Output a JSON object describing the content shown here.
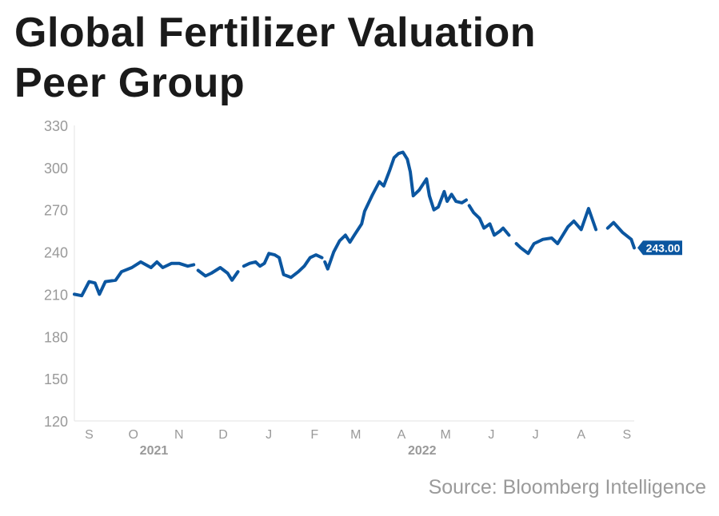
{
  "chart_data": {
    "type": "line",
    "title": "Global Fertilizer Valuation Peer Group",
    "source": "Source: Bloomberg Intelligence",
    "ylim": [
      120,
      330
    ],
    "yticks": [
      120,
      150,
      180,
      210,
      240,
      270,
      300,
      330
    ],
    "xlim": [
      "2021-08-22",
      "2022-09-06"
    ],
    "month_ticks": [
      {
        "date": "2021-09-01",
        "label": "S"
      },
      {
        "date": "2021-10-01",
        "label": "O"
      },
      {
        "date": "2021-11-01",
        "label": "N"
      },
      {
        "date": "2021-12-01",
        "label": "D"
      },
      {
        "date": "2022-01-01",
        "label": "J"
      },
      {
        "date": "2022-02-01",
        "label": "F"
      },
      {
        "date": "2022-03-01",
        "label": "M"
      },
      {
        "date": "2022-04-01",
        "label": "A"
      },
      {
        "date": "2022-05-01",
        "label": "M"
      },
      {
        "date": "2022-06-01",
        "label": "J"
      },
      {
        "date": "2022-07-01",
        "label": "J"
      },
      {
        "date": "2022-08-01",
        "label": "A"
      },
      {
        "date": "2022-09-01",
        "label": "S"
      }
    ],
    "year_labels": [
      {
        "date": "2021-10-15",
        "label": "2021"
      },
      {
        "date": "2022-04-15",
        "label": "2022"
      }
    ],
    "grid": false,
    "line_color": "#0b56a0",
    "last_value_label": "243.00",
    "x": [
      "2021-08-22",
      "2021-08-27",
      "2021-09-01",
      "2021-09-05",
      "2021-09-08",
      "2021-09-12",
      "2021-09-19",
      "2021-09-23",
      "2021-09-30",
      "2021-10-06",
      "2021-10-13",
      "2021-10-17",
      "2021-10-21",
      "2021-10-27",
      "2021-11-01",
      "2021-11-07",
      "2021-11-11",
      "2021-11-12",
      "2021-11-14",
      "2021-11-19",
      "2021-11-23",
      "2021-11-29",
      "2021-12-04",
      "2021-12-07",
      "2021-12-11",
      "2021-12-13",
      "2021-12-15",
      "2021-12-19",
      "2021-12-23",
      "2021-12-26",
      "2021-12-29",
      "2022-01-01",
      "2022-01-05",
      "2022-01-08",
      "2022-01-11",
      "2022-01-16",
      "2022-01-21",
      "2022-01-25",
      "2022-01-29",
      "2022-02-02",
      "2022-02-06",
      "2022-02-07",
      "2022-02-08",
      "2022-02-10",
      "2022-02-14",
      "2022-02-18",
      "2022-02-22",
      "2022-02-25",
      "2022-02-28",
      "2022-03-05",
      "2022-03-07",
      "2022-03-12",
      "2022-03-14",
      "2022-03-17",
      "2022-03-20",
      "2022-03-24",
      "2022-03-27",
      "2022-03-30",
      "2022-04-02",
      "2022-04-05",
      "2022-04-07",
      "2022-04-09",
      "2022-04-13",
      "2022-04-18",
      "2022-04-20",
      "2022-04-23",
      "2022-04-26",
      "2022-04-30",
      "2022-05-02",
      "2022-05-05",
      "2022-05-08",
      "2022-05-12",
      "2022-05-15",
      "2022-05-16",
      "2022-05-17",
      "2022-05-20",
      "2022-05-24",
      "2022-05-27",
      "2022-05-31",
      "2022-06-03",
      "2022-06-07",
      "2022-06-09",
      "2022-06-13",
      "2022-06-15",
      "2022-06-18",
      "2022-06-21",
      "2022-06-26",
      "2022-06-30",
      "2022-07-04",
      "2022-07-06",
      "2022-07-12",
      "2022-07-16",
      "2022-07-23",
      "2022-07-27",
      "2022-08-01",
      "2022-08-06",
      "2022-08-11",
      "2022-08-15",
      "2022-08-19",
      "2022-08-23",
      "2022-08-29",
      "2022-09-04",
      "2022-09-06"
    ],
    "values": [
      210,
      209,
      219,
      218,
      210,
      219,
      220,
      226,
      229,
      233,
      229,
      233,
      229,
      232,
      232,
      230,
      231,
      null,
      227,
      223,
      225,
      229,
      225,
      220,
      226,
      null,
      230,
      232,
      233,
      230,
      232,
      239,
      238,
      236,
      224,
      222,
      226,
      230,
      236,
      238,
      236,
      null,
      233,
      228,
      240,
      248,
      252,
      247,
      252,
      260,
      269,
      280,
      284,
      290,
      287,
      298,
      307,
      310,
      311,
      306,
      297,
      280,
      284,
      292,
      280,
      270,
      272,
      283,
      276,
      281,
      276,
      275,
      277,
      null,
      273,
      268,
      264,
      257,
      260,
      252,
      255,
      257,
      252,
      null,
      246,
      243,
      239,
      246,
      248,
      249,
      250,
      246,
      258,
      262,
      256,
      271,
      256,
      null,
      257,
      261,
      254,
      249,
      243
    ]
  }
}
